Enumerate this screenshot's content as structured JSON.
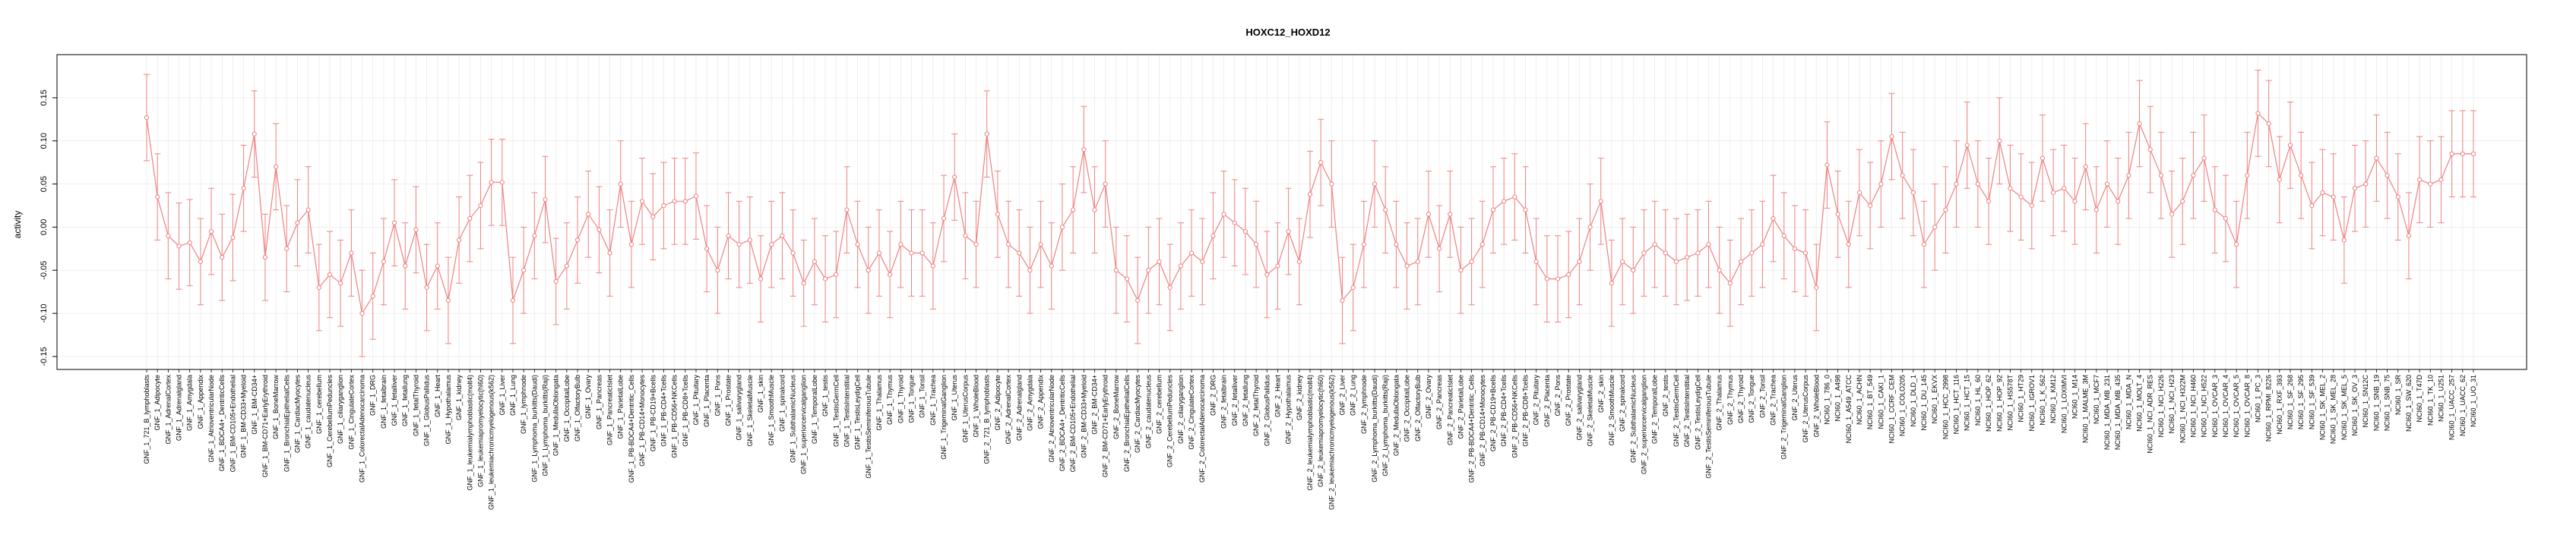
{
  "chart_data": {
    "type": "line",
    "title": "HOXC12_HOXD12",
    "xlabel": "",
    "ylabel": "activity",
    "ylim": [
      -0.165,
      0.2
    ],
    "y_ticks": [
      -0.15,
      -0.1,
      -0.05,
      0.0,
      0.05,
      0.1,
      0.15
    ],
    "y_tick_labels": [
      "-0.15",
      "-0.10",
      "-0.05",
      "0.00",
      "0.05",
      "0.10",
      "0.15"
    ],
    "grid": true,
    "legend": "none",
    "colors": {
      "series": "#f08080",
      "grid": "#ebebeb",
      "axis": "#000000"
    },
    "series": [
      {
        "error_bar": 0.05,
        "points": [
          {
            "x": "GNF_1_721_B_lymphoblasts",
            "y": 0.127
          },
          {
            "x": "GNF_1_Adipocyte",
            "y": 0.035
          },
          {
            "x": "GNF_1_AdrenalCortex",
            "y": -0.01
          },
          {
            "x": "GNF_1_Adrenalgland",
            "y": -0.022
          },
          {
            "x": "GNF_1_Amygdala",
            "y": -0.018
          },
          {
            "x": "GNF_1_Appendix",
            "y": -0.04
          },
          {
            "x": "GNF_1_AtrioventricularNode",
            "y": -0.005
          },
          {
            "x": "GNF_1_BDCA4+_DentriticCells",
            "y": -0.035
          },
          {
            "x": "GNF_1_BM-CD105+Endothelial",
            "y": -0.012
          },
          {
            "x": "GNF_1_BM-CD33+Myeloid",
            "y": 0.045
          },
          {
            "x": "GNF_1_BM-CD34+",
            "y": 0.108
          },
          {
            "x": "GNF_1_BM-CD71+EarlyErythroid",
            "y": -0.035
          },
          {
            "x": "GNF_1_BoneMarrow",
            "y": 0.07
          },
          {
            "x": "GNF_1_BronchialEpithelialCells",
            "y": -0.025
          },
          {
            "x": "GNF_1_CardiacMyocytes",
            "y": 0.005
          },
          {
            "x": "GNF_1_caudatenucleus",
            "y": 0.02
          },
          {
            "x": "GNF_1_cerebellum",
            "y": -0.07
          },
          {
            "x": "GNF_1_CerebellumPeduncles",
            "y": -0.055
          },
          {
            "x": "GNF_1_ciliaryganglion",
            "y": -0.065
          },
          {
            "x": "GNF_1_CingulateCortex",
            "y": -0.03
          },
          {
            "x": "GNF_1_ColorectalAdenocarcinoma",
            "y": -0.1
          },
          {
            "x": "GNF_1_DRG",
            "y": -0.08
          },
          {
            "x": "GNF_1_fetalbrain",
            "y": -0.04
          },
          {
            "x": "GNF_1_fetalliver",
            "y": 0.005
          },
          {
            "x": "GNF_1_fetallung",
            "y": -0.045
          },
          {
            "x": "GNF_1_fetalThyroid",
            "y": -0.003
          },
          {
            "x": "GNF_1_GlobusPallidus",
            "y": -0.07
          },
          {
            "x": "GNF_1_Heart",
            "y": -0.045
          },
          {
            "x": "GNF_1_Hypothalamus",
            "y": -0.085
          },
          {
            "x": "GNF_1_kidney",
            "y": -0.015
          },
          {
            "x": "GNF_1_leukemialymphoblastic(molt4)",
            "y": 0.01
          },
          {
            "x": "GNF_1_leukemiapromyelocytic(hl60)",
            "y": 0.025
          },
          {
            "x": "GNF_1_leukemiachronicmyelogenous(k562)",
            "y": 0.052
          },
          {
            "x": "GNF_1_Liver",
            "y": 0.052
          },
          {
            "x": "GNF_1_Lung",
            "y": -0.085
          },
          {
            "x": "GNF_1_lymphnode",
            "y": -0.05
          },
          {
            "x": "GNF_1_Lymphoma_burkitts(Daudi)",
            "y": -0.01
          },
          {
            "x": "GNF_1_Lymphoma_burkitts(Raji)",
            "y": 0.032
          },
          {
            "x": "GNF_1_MedullaOblongata",
            "y": -0.063
          },
          {
            "x": "GNF_1_OccipitalLobe",
            "y": -0.045
          },
          {
            "x": "GNF_1_OlfactoryBulb",
            "y": -0.015
          },
          {
            "x": "GNF_1_Ovary",
            "y": 0.015
          },
          {
            "x": "GNF_1_Pancreas",
            "y": -0.003
          },
          {
            "x": "GNF_1_PancreaticIslet",
            "y": -0.03
          },
          {
            "x": "GNF_1_ParietalLobe",
            "y": 0.05
          },
          {
            "x": "GNF_1_PB-BDCA4+Dentritic_Cells",
            "y": -0.02
          },
          {
            "x": "GNF_1_PB-CD14+Monocytes",
            "y": 0.03
          },
          {
            "x": "GNF_1_PB-CD19+Bcells",
            "y": 0.012
          },
          {
            "x": "GNF_1_PB-CD4+Tcells",
            "y": 0.025
          },
          {
            "x": "GNF_1_PB-CD56+NKCells",
            "y": 0.03
          },
          {
            "x": "GNF_1_PB-CD8+Tcells",
            "y": 0.03
          },
          {
            "x": "GNF_1_Pituitary",
            "y": 0.036
          },
          {
            "x": "GNF_1_Placenta",
            "y": -0.025
          },
          {
            "x": "GNF_1_Pons",
            "y": -0.05
          },
          {
            "x": "GNF_1_Prostate",
            "y": -0.01
          },
          {
            "x": "GNF_1_salivarygland",
            "y": -0.02
          },
          {
            "x": "GNF_1_SkeletalMuscle",
            "y": -0.015
          },
          {
            "x": "GNF_1_skin",
            "y": -0.06
          },
          {
            "x": "GNF_1_SmoothMuscle",
            "y": -0.02
          },
          {
            "x": "GNF_1_spinalcord",
            "y": -0.01
          },
          {
            "x": "GNF_1_SubthalamicNucleus",
            "y": -0.03
          },
          {
            "x": "GNF_1_superiorcervicalganglion",
            "y": -0.065
          },
          {
            "x": "GNF_1_TemporalLobe",
            "y": -0.04
          },
          {
            "x": "GNF_1_testis",
            "y": -0.06
          },
          {
            "x": "GNF_1_TestisGermCell",
            "y": -0.055
          },
          {
            "x": "GNF_1_TestisInterstitial",
            "y": 0.02
          },
          {
            "x": "GNF_1_TestisLeydigCell",
            "y": -0.02
          },
          {
            "x": "GNF_1_TestisSeminiferousTubule",
            "y": -0.05
          },
          {
            "x": "GNF_1_Thalamus",
            "y": -0.03
          },
          {
            "x": "GNF_1_Thymus",
            "y": -0.055
          },
          {
            "x": "GNF_1_Thyroid",
            "y": -0.02
          },
          {
            "x": "GNF_1_Tongue",
            "y": -0.03
          },
          {
            "x": "GNF_1_Tonsil",
            "y": -0.03
          },
          {
            "x": "GNF_1_Trachea",
            "y": -0.045
          },
          {
            "x": "GNF_1_TrigeminalGanglion",
            "y": 0.01
          },
          {
            "x": "GNF_1_Uterus",
            "y": 0.058
          },
          {
            "x": "GNF_1_UterusCorpus",
            "y": -0.01
          },
          {
            "x": "GNF_1_WholeBlood",
            "y": -0.02
          },
          {
            "x": "GNF_2_721_B_lymphoblasts",
            "y": 0.108
          },
          {
            "x": "GNF_2_Adipocyte",
            "y": 0.015
          },
          {
            "x": "GNF_2_AdrenalCortex",
            "y": -0.02
          },
          {
            "x": "GNF_2_Adrenalgland",
            "y": -0.03
          },
          {
            "x": "GNF_2_Amygdala",
            "y": -0.05
          },
          {
            "x": "GNF_2_Appendix",
            "y": -0.02
          },
          {
            "x": "GNF_2_AtrioventricularNode",
            "y": -0.045
          },
          {
            "x": "GNF_2_BDCA4+_DentriticCells",
            "y": 0.0
          },
          {
            "x": "GNF_2_BM-CD105+Endothelial",
            "y": 0.02
          },
          {
            "x": "GNF_2_BM-CD33+Myeloid",
            "y": 0.09
          },
          {
            "x": "GNF_2_BM-CD34+",
            "y": 0.02
          },
          {
            "x": "GNF_2_BM-CD71+EarlyErythroid",
            "y": 0.05
          },
          {
            "x": "GNF_2_BoneMarrow",
            "y": -0.05
          },
          {
            "x": "GNF_2_BronchialEpithelialCells",
            "y": -0.06
          },
          {
            "x": "GNF_2_CardiacMyocytes",
            "y": -0.085
          },
          {
            "x": "GNF_2_caudatenucleus",
            "y": -0.05
          },
          {
            "x": "GNF_2_cerebellum",
            "y": -0.04
          },
          {
            "x": "GNF_2_CerebellumPeduncles",
            "y": -0.07
          },
          {
            "x": "GNF_2_ciliaryganglion",
            "y": -0.045
          },
          {
            "x": "GNF_2_CingulateCortex",
            "y": -0.03
          },
          {
            "x": "GNF_2_ColorectalAdenocarcinoma",
            "y": -0.04
          },
          {
            "x": "GNF_2_DRG",
            "y": -0.01
          },
          {
            "x": "GNF_2_fetalbrain",
            "y": 0.015
          },
          {
            "x": "GNF_2_fetalliver",
            "y": 0.005
          },
          {
            "x": "GNF_2_fetallung",
            "y": -0.005
          },
          {
            "x": "GNF_2_fetalThyroid",
            "y": -0.02
          },
          {
            "x": "GNF_2_GlobusPallidus",
            "y": -0.055
          },
          {
            "x": "GNF_2_Heart",
            "y": -0.045
          },
          {
            "x": "GNF_2_Hypothalamus",
            "y": -0.005
          },
          {
            "x": "GNF_2_kidney",
            "y": -0.04
          },
          {
            "x": "GNF_2_leukemialymphoblastic(molt4)",
            "y": 0.038
          },
          {
            "x": "GNF_2_leukemiapromyelocytic(hl60)",
            "y": 0.075
          },
          {
            "x": "GNF_2_leukemiachronicmyelogenous(k562)",
            "y": 0.05
          },
          {
            "x": "GNF_2_Liver",
            "y": -0.085
          },
          {
            "x": "GNF_2_Lung",
            "y": -0.07
          },
          {
            "x": "GNF_2_lymphnode",
            "y": -0.02
          },
          {
            "x": "GNF_2_Lymphoma_burkitts(Daudi)",
            "y": 0.05
          },
          {
            "x": "GNF_2_Lymphoma_burkitts(Raji)",
            "y": 0.02
          },
          {
            "x": "GNF_2_MedullaOblongata",
            "y": -0.02
          },
          {
            "x": "GNF_2_OccipitalLobe",
            "y": -0.045
          },
          {
            "x": "GNF_2_OlfactoryBulb",
            "y": -0.04
          },
          {
            "x": "GNF_2_Ovary",
            "y": 0.015
          },
          {
            "x": "GNF_2_Pancreas",
            "y": -0.025
          },
          {
            "x": "GNF_2_PancreaticIslet",
            "y": 0.015
          },
          {
            "x": "GNF_2_ParietalLobe",
            "y": -0.05
          },
          {
            "x": "GNF_2_PB-BDCA4+Dentritic_Cells",
            "y": -0.04
          },
          {
            "x": "GNF_2_PB-CD14+Monocytes",
            "y": -0.02
          },
          {
            "x": "GNF_2_PB-CD19+Bcells",
            "y": 0.02
          },
          {
            "x": "GNF_2_PB-CD4+Tcells",
            "y": 0.03
          },
          {
            "x": "GNF_2_PB-CD56+NKCells",
            "y": 0.035
          },
          {
            "x": "GNF_2_PB-CD8+Tcells",
            "y": 0.02
          },
          {
            "x": "GNF_2_Pituitary",
            "y": -0.04
          },
          {
            "x": "GNF_2_Placenta",
            "y": -0.06
          },
          {
            "x": "GNF_2_Pons",
            "y": -0.06
          },
          {
            "x": "GNF_2_Prostate",
            "y": -0.055
          },
          {
            "x": "GNF_2_salivarygland",
            "y": -0.04
          },
          {
            "x": "GNF_2_SkeletalMuscle",
            "y": 0.0
          },
          {
            "x": "GNF_2_skin",
            "y": 0.03
          },
          {
            "x": "GNF_2_SmoothMuscle",
            "y": -0.065
          },
          {
            "x": "GNF_2_spinalcord",
            "y": -0.04
          },
          {
            "x": "GNF_2_SubthalamicNucleus",
            "y": -0.05
          },
          {
            "x": "GNF_2_superiorcervicalganglion",
            "y": -0.03
          },
          {
            "x": "GNF_2_TemporalLobe",
            "y": -0.02
          },
          {
            "x": "GNF_2_testis",
            "y": -0.03
          },
          {
            "x": "GNF_2_TestisGermCell",
            "y": -0.04
          },
          {
            "x": "GNF_2_TestisInterstitial",
            "y": -0.035
          },
          {
            "x": "GNF_2_TestisLeydigCell",
            "y": -0.03
          },
          {
            "x": "GNF_2_TestisSeminiferousTubule",
            "y": -0.02
          },
          {
            "x": "GNF_2_Thalamus",
            "y": -0.05
          },
          {
            "x": "GNF_2_Thymus",
            "y": -0.065
          },
          {
            "x": "GNF_2_Thyroid",
            "y": -0.04
          },
          {
            "x": "GNF_2_Tongue",
            "y": -0.03
          },
          {
            "x": "GNF_2_Tonsil",
            "y": -0.02
          },
          {
            "x": "GNF_2_Trachea",
            "y": 0.01
          },
          {
            "x": "GNF_2_TrigeminalGanglion",
            "y": -0.01
          },
          {
            "x": "GNF_2_Uterus",
            "y": -0.025
          },
          {
            "x": "GNF_2_UterusCorpus",
            "y": -0.03
          },
          {
            "x": "GNF_2_WholeBlood",
            "y": -0.07
          },
          {
            "x": "NCI60_1_786_0",
            "y": 0.072
          },
          {
            "x": "NCI60_1_A498",
            "y": 0.015
          },
          {
            "x": "NCI60_1_A549_ATCC",
            "y": -0.02
          },
          {
            "x": "NCI60_1_ACHN",
            "y": 0.04
          },
          {
            "x": "NCI60_1_BT_549",
            "y": 0.025
          },
          {
            "x": "NCI60_1_CAKI_1",
            "y": 0.05
          },
          {
            "x": "NCI60_1_CCRF_CEM",
            "y": 0.105
          },
          {
            "x": "NCI60_1_COLO205",
            "y": 0.06
          },
          {
            "x": "NCI60_1_DLD_1",
            "y": 0.04
          },
          {
            "x": "NCI60_1_DU_145",
            "y": -0.02
          },
          {
            "x": "NCI60_1_EKVX",
            "y": 0.0
          },
          {
            "x": "NCI60_1_HCC_2998",
            "y": 0.02
          },
          {
            "x": "NCI60_1_HCT_116",
            "y": 0.05
          },
          {
            "x": "NCI60_1_HCT_15",
            "y": 0.095
          },
          {
            "x": "NCI60_1_HL_60",
            "y": 0.05
          },
          {
            "x": "NCI60_1_HOP_62",
            "y": 0.03
          },
          {
            "x": "NCI60_1_HOP_92",
            "y": 0.1
          },
          {
            "x": "NCI60_1_HS578T",
            "y": 0.045
          },
          {
            "x": "NCI60_1_HT29",
            "y": 0.035
          },
          {
            "x": "NCI60_1_IGROV1",
            "y": 0.025
          },
          {
            "x": "NCI60_1_K_562",
            "y": 0.08
          },
          {
            "x": "NCI60_1_KM12",
            "y": 0.04
          },
          {
            "x": "NCI60_1_LOXIMVI",
            "y": 0.045
          },
          {
            "x": "NCI60_1_M14",
            "y": 0.03
          },
          {
            "x": "NCI60_1_MALME_3M",
            "y": 0.07
          },
          {
            "x": "NCI60_1_MCF7",
            "y": 0.02
          },
          {
            "x": "NCI60_1_MDA_MB_231",
            "y": 0.05
          },
          {
            "x": "NCI60_1_MDA_MB_435",
            "y": 0.03
          },
          {
            "x": "NCI60_1_MDA_N",
            "y": 0.06
          },
          {
            "x": "NCI60_1_MOLT_4",
            "y": 0.12
          },
          {
            "x": "NCI60_1_NCI_ADR_RES",
            "y": 0.09
          },
          {
            "x": "NCI60_1_NCI_H226",
            "y": 0.06
          },
          {
            "x": "NCI60_1_NCI_H23",
            "y": 0.015
          },
          {
            "x": "NCI60_1_NCI_H322M",
            "y": 0.03
          },
          {
            "x": "NCI60_1_NCI_H460",
            "y": 0.06
          },
          {
            "x": "NCI60_1_NCI_H522",
            "y": 0.08
          },
          {
            "x": "NCI60_1_OVCAR_3",
            "y": 0.02
          },
          {
            "x": "NCI60_1_OVCAR_4",
            "y": 0.01
          },
          {
            "x": "NCI60_1_OVCAR_5",
            "y": -0.02
          },
          {
            "x": "NCI60_1_OVCAR_8",
            "y": 0.06
          },
          {
            "x": "NCI60_1_PC_3",
            "y": 0.132
          },
          {
            "x": "NCI60_1_RPMI_8226",
            "y": 0.12
          },
          {
            "x": "NCI60_1_RXF_393",
            "y": 0.055
          },
          {
            "x": "NCI60_1_SF_268",
            "y": 0.095
          },
          {
            "x": "NCI60_1_SF_295",
            "y": 0.06
          },
          {
            "x": "NCI60_1_SF_539",
            "y": 0.025
          },
          {
            "x": "NCI60_1_SK_MEL_2",
            "y": 0.04
          },
          {
            "x": "NCI60_1_SK_MEL_28",
            "y": 0.035
          },
          {
            "x": "NCI60_1_SK_MEL_5",
            "y": -0.015
          },
          {
            "x": "NCI60_1_SK_OV_3",
            "y": 0.045
          },
          {
            "x": "NCI60_1_SN12C",
            "y": 0.05
          },
          {
            "x": "NCI60_1_SNB_19",
            "y": 0.08
          },
          {
            "x": "NCI60_1_SNB_75",
            "y": 0.06
          },
          {
            "x": "NCI60_1_SR",
            "y": 0.035
          },
          {
            "x": "NCI60_1_SW_620",
            "y": -0.01
          },
          {
            "x": "NCI60_1_T47D",
            "y": 0.055
          },
          {
            "x": "NCI60_1_TK_10",
            "y": 0.05
          },
          {
            "x": "NCI60_1_U251",
            "y": 0.055
          },
          {
            "x": "NCI60_1_UACC_257",
            "y": 0.085
          },
          {
            "x": "NCI60_1_UACC_62",
            "y": 0.085
          },
          {
            "x": "NCI60_1_UO_31",
            "y": 0.085
          }
        ]
      }
    ]
  }
}
